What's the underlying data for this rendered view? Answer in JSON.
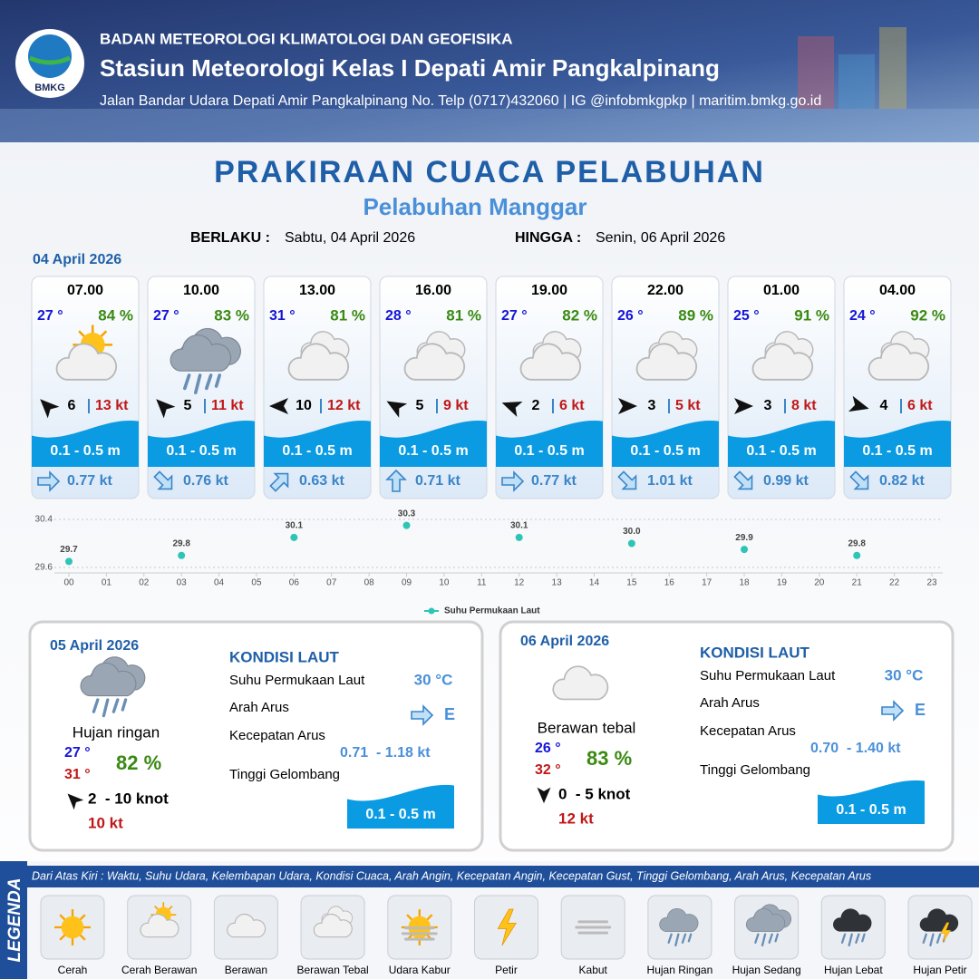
{
  "header": {
    "logo": "BMKG",
    "org": "BADAN METEOROLOGI KLIMATOLOGI DAN GEOFISIKA",
    "station": "Stasiun Meteorologi Kelas I Depati Amir Pangkalpinang",
    "address": "Jalan Bandar Udara Depati Amir Pangkalpinang No. Telp (0717)432060 | IG @infobmkgpkp | maritim.bmkg.go.id"
  },
  "title": "PRAKIRAAN CUACA PELABUHAN",
  "port": "Pelabuhan Manggar",
  "validity": {
    "from_label": "BERLAKU :",
    "from": "Sabtu, 04 April 2026",
    "to_label": "HINGGA :",
    "to": "Senin, 06 April 2026"
  },
  "day1": {
    "date": "04 April 2026",
    "cards": [
      {
        "time": "07.00",
        "temp": "27 °",
        "humidity": "84 %",
        "wind": "6",
        "gust": "13 kt",
        "wave": "0.1 - 0.5 m",
        "current": "0.77 kt"
      },
      {
        "time": "10.00",
        "temp": "27 °",
        "humidity": "83 %",
        "wind": "5",
        "gust": "11 kt",
        "wave": "0.1 - 0.5 m",
        "current": "0.76 kt"
      },
      {
        "time": "13.00",
        "temp": "31 °",
        "humidity": "81 %",
        "wind": "10",
        "gust": "12 kt",
        "wave": "0.1 - 0.5 m",
        "current": "0.63 kt"
      },
      {
        "time": "16.00",
        "temp": "28 °",
        "humidity": "81 %",
        "wind": "5",
        "gust": "9 kt",
        "wave": "0.1 - 0.5 m",
        "current": "0.71 kt"
      },
      {
        "time": "19.00",
        "temp": "27 °",
        "humidity": "82 %",
        "wind": "2",
        "gust": "6 kt",
        "wave": "0.1 - 0.5 m",
        "current": "0.77 kt"
      },
      {
        "time": "22.00",
        "temp": "26 °",
        "humidity": "89 %",
        "wind": "3",
        "gust": "5 kt",
        "wave": "0.1 - 0.5 m",
        "current": "1.01 kt"
      },
      {
        "time": "01.00",
        "temp": "25 °",
        "humidity": "91 %",
        "wind": "3",
        "gust": "8 kt",
        "wave": "0.1 - 0.5 m",
        "current": "0.99 kt"
      },
      {
        "time": "04.00",
        "temp": "24 °",
        "humidity": "92 %",
        "wind": "4",
        "gust": "6 kt",
        "wave": "0.1 - 0.5 m",
        "current": "0.82 kt"
      }
    ]
  },
  "chart_data": {
    "type": "scatter",
    "x": [
      0,
      3,
      6,
      9,
      12,
      15,
      18,
      21
    ],
    "series": [
      {
        "name": "Suhu Permukaan Laut",
        "color": "#2ec4b6",
        "values": [
          29.7,
          29.8,
          30.1,
          30.3,
          30.1,
          30.0,
          29.9,
          29.8
        ],
        "value_labels": [
          "29.7",
          "29.8",
          "30.1",
          "30.3",
          "30.1",
          "30.0",
          "29.9",
          "29.8"
        ]
      }
    ],
    "xlim": [
      0,
      23
    ],
    "xticks": [
      {
        "value": 0,
        "label": "00"
      },
      {
        "value": 1,
        "label": "01"
      },
      {
        "value": 2,
        "label": "02"
      },
      {
        "value": 3,
        "label": "03"
      },
      {
        "value": 4,
        "label": "04"
      },
      {
        "value": 5,
        "label": "05"
      },
      {
        "value": 6,
        "label": "06"
      },
      {
        "value": 7,
        "label": "07"
      },
      {
        "value": 8,
        "label": "08"
      },
      {
        "value": 9,
        "label": "09"
      },
      10,
      11,
      12,
      13,
      14,
      15,
      16,
      17,
      18,
      19,
      20,
      21,
      22,
      23
    ],
    "ylim": [
      29.6,
      30.4
    ],
    "yticks": [
      29.6,
      30.4
    ],
    "grid": true
  },
  "days": [
    {
      "date": "05 April 2026",
      "condition": "Hujan ringan",
      "temp_min": "27 °",
      "temp_max": "31 °",
      "humidity": "82 %",
      "wind": "2  - 10 knot",
      "gust": "10 kt",
      "sea": {
        "heading": "KONDISI LAUT",
        "sst_label": "Suhu Permukaan Laut",
        "sst": "30 °C",
        "dir_label": "Arah Arus",
        "dir": "E",
        "speed_label": "Kecepatan Arus",
        "speed": "0.71  - 1.18 kt",
        "wave_label": "Tinggi Gelombang",
        "wave": "0.1 - 0.5 m"
      }
    },
    {
      "date": "06 April 2026",
      "condition": "Berawan tebal",
      "temp_min": "26 °",
      "temp_max": "32 °",
      "humidity": "83 %",
      "wind": "0  - 5 knot",
      "gust": "12 kt",
      "sea": {
        "heading": "KONDISI LAUT",
        "sst_label": "Suhu Permukaan Laut",
        "sst": "30 °C",
        "dir_label": "Arah Arus",
        "dir": "E",
        "speed_label": "Kecepatan Arus",
        "speed": "0.70  - 1.40 kt",
        "wave_label": "Tinggi Gelombang",
        "wave": "0.1 - 0.5 m"
      }
    }
  ],
  "legend": {
    "label": "LEGENDA",
    "description": "Dari Atas Kiri : Waktu, Suhu Udara, Kelembapan Udara, Kondisi Cuaca, Arah Angin, Kecepatan Angin, Kecepatan Gust, Tinggi Gelombang, Arah Arus, Kecepatan Arus",
    "items": [
      "Cerah",
      "Cerah Berawan",
      "Berawan",
      "Berawan Tebal",
      "Udara Kabur",
      "Petir",
      "Kabut",
      "Hujan Ringan",
      "Hujan Sedang",
      "Hujan Lebat",
      "Hujan Petir"
    ]
  }
}
